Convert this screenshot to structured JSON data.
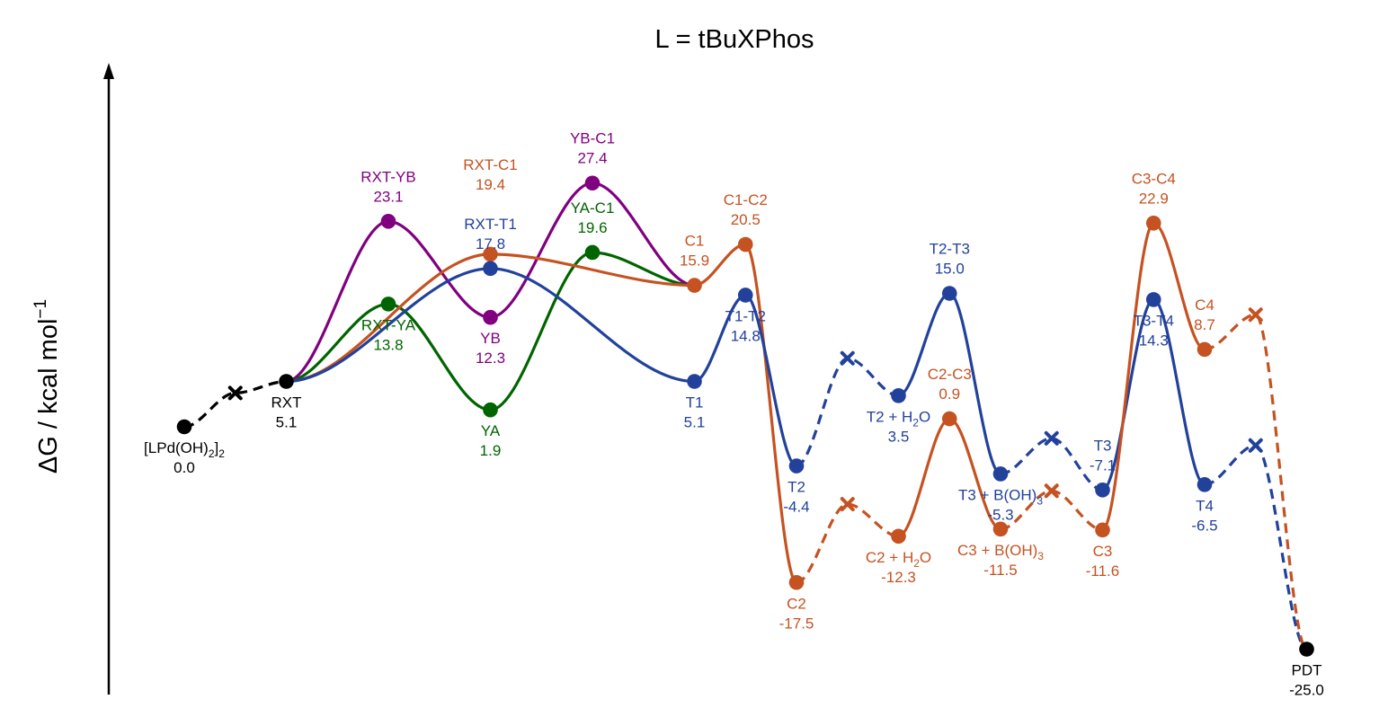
{
  "chart_data": {
    "type": "line",
    "title": "L = tBuXPhos",
    "ylabel": "ΔG / kcal mol",
    "ylabel_sup": "−1",
    "xlabel": "",
    "grid": false,
    "axis": {
      "y_arrow": true,
      "y_ticks": false
    },
    "colors": {
      "black": "#000000",
      "orange": "#c55221",
      "blue": "#22419b",
      "purple": "#800080",
      "green": "#006400"
    },
    "states": [
      {
        "id": "lpd",
        "name": "[LPd(OH)2]2",
        "value": 0.0,
        "color": "black",
        "x": 0.0,
        "y": 0.0
      },
      {
        "id": "rxt",
        "name": "RXT",
        "value": 5.1,
        "color": "black",
        "x": 1.0,
        "y": 5.1
      },
      {
        "id": "rxtyb",
        "name": "RXT-YB",
        "value": 23.1,
        "color": "purple",
        "x": 2.0,
        "y": 23.1
      },
      {
        "id": "rxtya",
        "name": "RXT-YA",
        "value": 13.8,
        "color": "green",
        "x": 2.0,
        "y": 13.8
      },
      {
        "id": "rxtc1",
        "name": "RXT-C1",
        "value": 19.4,
        "color": "orange",
        "x": 3.0,
        "y": 19.4
      },
      {
        "id": "rxtt1",
        "name": "RXT-T1",
        "value": 17.8,
        "color": "blue",
        "x": 3.0,
        "y": 17.8
      },
      {
        "id": "yb",
        "name": "YB",
        "value": 12.3,
        "color": "purple",
        "x": 3.0,
        "y": 12.3
      },
      {
        "id": "ya",
        "name": "YA",
        "value": 1.9,
        "color": "green",
        "x": 3.0,
        "y": 1.9
      },
      {
        "id": "ybc1",
        "name": "YB-C1",
        "value": 27.4,
        "color": "purple",
        "x": 4.0,
        "y": 27.4
      },
      {
        "id": "yac1",
        "name": "YA-C1",
        "value": 19.6,
        "color": "green",
        "x": 4.0,
        "y": 19.6
      },
      {
        "id": "c1",
        "name": "C1",
        "value": 15.9,
        "color": "orange",
        "x": 5.0,
        "y": 15.9
      },
      {
        "id": "t1",
        "name": "T1",
        "value": 5.1,
        "color": "blue",
        "x": 5.0,
        "y": 5.1
      },
      {
        "id": "c1c2",
        "name": "C1-C2",
        "value": 20.5,
        "color": "orange",
        "x": 5.5,
        "y": 20.5
      },
      {
        "id": "t1t2",
        "name": "T1-T2",
        "value": 14.8,
        "color": "blue",
        "x": 5.5,
        "y": 14.8
      },
      {
        "id": "t2",
        "name": "T2",
        "value": -4.4,
        "color": "blue",
        "x": 6.0,
        "y": -4.4
      },
      {
        "id": "c2",
        "name": "C2",
        "value": -17.5,
        "color": "orange",
        "x": 6.0,
        "y": -17.5
      },
      {
        "id": "t2h",
        "name": "T2 + H2O",
        "value": 3.5,
        "color": "blue",
        "x": 7.0,
        "y": 3.5
      },
      {
        "id": "c2h",
        "name": "C2 + H2O",
        "value": -12.3,
        "color": "orange",
        "x": 7.0,
        "y": -12.3
      },
      {
        "id": "t2t3",
        "name": "T2-T3",
        "value": 15.0,
        "color": "blue",
        "x": 7.5,
        "y": 15.0
      },
      {
        "id": "c2c3",
        "name": "C2-C3",
        "value": 0.9,
        "color": "orange",
        "x": 7.5,
        "y": 0.9
      },
      {
        "id": "t3b",
        "name": "T3 + B(OH)3",
        "value": -5.3,
        "color": "blue",
        "x": 8.0,
        "y": -5.3
      },
      {
        "id": "c3b",
        "name": "C3 + B(OH)3",
        "value": -11.5,
        "color": "orange",
        "x": 8.0,
        "y": -11.5
      },
      {
        "id": "t3",
        "name": "T3",
        "value": -7.1,
        "color": "blue",
        "x": 9.0,
        "y": -7.1
      },
      {
        "id": "c3",
        "name": "C3",
        "value": -11.6,
        "color": "orange",
        "x": 9.0,
        "y": -11.6
      },
      {
        "id": "c3c4",
        "name": "C3-C4",
        "value": 22.9,
        "color": "orange",
        "x": 9.5,
        "y": 22.9
      },
      {
        "id": "t3t4",
        "name": "T3-T4",
        "value": 14.3,
        "color": "blue",
        "x": 9.5,
        "y": 14.3
      },
      {
        "id": "c4",
        "name": "C4",
        "value": 8.7,
        "color": "orange",
        "x": 10.0,
        "y": 8.7
      },
      {
        "id": "t4",
        "name": "T4",
        "value": -6.5,
        "color": "blue",
        "x": 10.0,
        "y": -6.5
      },
      {
        "id": "pdt",
        "name": "PDT",
        "value": -25.0,
        "color": "black",
        "x": 11.0,
        "y": -25.0
      }
    ],
    "crossings": [
      {
        "id": "x1",
        "color": "black",
        "x": 0.5,
        "y": 3.8
      },
      {
        "id": "x2",
        "color": "blue",
        "x": 6.5,
        "y": 7.7
      },
      {
        "id": "x3",
        "color": "orange",
        "x": 6.5,
        "y": -8.7
      },
      {
        "id": "x4",
        "color": "blue",
        "x": 8.5,
        "y": -1.3
      },
      {
        "id": "x5",
        "color": "orange",
        "x": 8.5,
        "y": -7.2
      },
      {
        "id": "x6",
        "color": "orange",
        "x": 10.5,
        "y": 12.6
      },
      {
        "id": "x7",
        "color": "blue",
        "x": 10.5,
        "y": -2.1
      }
    ],
    "paths": [
      {
        "id": "lpd-rxt",
        "color": "black",
        "style": "dashed",
        "points": [
          "lpd",
          "x1",
          "rxt"
        ]
      },
      {
        "id": "purple",
        "color": "purple",
        "style": "solid",
        "points": [
          "rxt",
          "rxtyb",
          "yb",
          "ybc1",
          "c1"
        ]
      },
      {
        "id": "green",
        "color": "green",
        "style": "solid",
        "points": [
          "rxt",
          "rxtya",
          "ya",
          "yac1",
          "c1"
        ]
      },
      {
        "id": "orange-a",
        "color": "orange",
        "style": "solid",
        "points": [
          "rxt",
          "rxtc1",
          "c1",
          "c1c2",
          "c2"
        ]
      },
      {
        "id": "blue-a",
        "color": "blue",
        "style": "solid",
        "points": [
          "rxt",
          "rxtt1",
          "t1",
          "t1t2",
          "t2"
        ]
      },
      {
        "id": "blue-d1",
        "color": "blue",
        "style": "dashed",
        "points": [
          "t2",
          "x2",
          "t2h"
        ]
      },
      {
        "id": "blue-b",
        "color": "blue",
        "style": "solid",
        "points": [
          "t2h",
          "t2t3",
          "t3b"
        ]
      },
      {
        "id": "blue-d2",
        "color": "blue",
        "style": "dashed",
        "points": [
          "t3b",
          "x4",
          "t3"
        ]
      },
      {
        "id": "blue-c",
        "color": "blue",
        "style": "solid",
        "points": [
          "t3",
          "t3t4",
          "t4"
        ]
      },
      {
        "id": "blue-d3",
        "color": "blue",
        "style": "dashed",
        "points": [
          "t4",
          "x7",
          "pdt"
        ]
      },
      {
        "id": "orange-d1",
        "color": "orange",
        "style": "dashed",
        "points": [
          "c2",
          "x3",
          "c2h"
        ]
      },
      {
        "id": "orange-b",
        "color": "orange",
        "style": "solid",
        "points": [
          "c2h",
          "c2c3",
          "c3b"
        ]
      },
      {
        "id": "orange-d2",
        "color": "orange",
        "style": "dashed",
        "points": [
          "c3b",
          "x5",
          "c3"
        ]
      },
      {
        "id": "orange-c",
        "color": "orange",
        "style": "solid",
        "points": [
          "c3",
          "c3c4",
          "c4"
        ]
      },
      {
        "id": "orange-d3",
        "color": "orange",
        "style": "dashed",
        "points": [
          "c4",
          "x6",
          "pdt"
        ]
      }
    ],
    "labels": [
      {
        "state": "lpd",
        "color": "black",
        "pos": "below",
        "lines": [
          [
            "[LPd(OH)",
            {
              "sub": "2"
            },
            "]",
            {
              "sub": "2"
            }
          ],
          [
            "0.0"
          ]
        ]
      },
      {
        "state": "rxt",
        "color": "black",
        "pos": "below",
        "lines": [
          [
            "RXT"
          ],
          [
            "5.1"
          ]
        ]
      },
      {
        "state": "rxtyb",
        "color": "purple",
        "pos": "above",
        "lines": [
          [
            "RXT-YB"
          ],
          [
            "23.1"
          ]
        ]
      },
      {
        "state": "rxtya",
        "color": "green",
        "pos": "below",
        "lines": [
          [
            "RXT-YA"
          ],
          [
            "13.8"
          ]
        ]
      },
      {
        "state": "rxtc1",
        "color": "orange",
        "pos": "above",
        "lift": 50,
        "lines": [
          [
            "RXT-C1"
          ],
          [
            "19.4"
          ]
        ]
      },
      {
        "state": "rxtt1",
        "color": "blue",
        "pos": "above",
        "lines": [
          [
            "RXT-T1"
          ],
          [
            "17.8"
          ]
        ]
      },
      {
        "state": "yb",
        "color": "purple",
        "pos": "below",
        "lines": [
          [
            "YB"
          ],
          [
            "12.3"
          ]
        ]
      },
      {
        "state": "ya",
        "color": "green",
        "pos": "below",
        "lines": [
          [
            "YA"
          ],
          [
            "1.9"
          ]
        ]
      },
      {
        "state": "ybc1",
        "color": "purple",
        "pos": "above",
        "lines": [
          [
            "YB-C1"
          ],
          [
            "27.4"
          ]
        ]
      },
      {
        "state": "yac1",
        "color": "green",
        "pos": "above",
        "lines": [
          [
            "YA-C1"
          ],
          [
            "19.6"
          ]
        ]
      },
      {
        "state": "c1",
        "color": "orange",
        "pos": "above",
        "lines": [
          [
            "C1"
          ],
          [
            "15.9"
          ]
        ]
      },
      {
        "state": "t1",
        "color": "blue",
        "pos": "below",
        "lines": [
          [
            "T1"
          ],
          [
            "5.1"
          ]
        ]
      },
      {
        "state": "c1c2",
        "color": "orange",
        "pos": "above",
        "lines": [
          [
            "C1-C2"
          ],
          [
            "20.5"
          ]
        ]
      },
      {
        "state": "t1t2",
        "color": "blue",
        "pos": "below",
        "lines": [
          [
            "T1-T2"
          ],
          [
            "14.8"
          ]
        ]
      },
      {
        "state": "t2",
        "color": "blue",
        "pos": "below",
        "lines": [
          [
            "T2"
          ],
          [
            "-4.4"
          ]
        ]
      },
      {
        "state": "c2",
        "color": "orange",
        "pos": "below",
        "lines": [
          [
            "C2"
          ],
          [
            "-17.5"
          ]
        ]
      },
      {
        "state": "t2h",
        "color": "blue",
        "pos": "below",
        "lines": [
          [
            "T2 + H",
            {
              "sub": "2"
            },
            "O"
          ],
          [
            "3.5"
          ]
        ]
      },
      {
        "state": "c2h",
        "color": "orange",
        "pos": "below",
        "lines": [
          [
            "C2 + H",
            {
              "sub": "2"
            },
            "O"
          ],
          [
            "-12.3"
          ]
        ]
      },
      {
        "state": "t2t3",
        "color": "blue",
        "pos": "above",
        "lines": [
          [
            "T2-T3"
          ],
          [
            "15.0"
          ]
        ]
      },
      {
        "state": "c2c3",
        "color": "orange",
        "pos": "above",
        "lines": [
          [
            "C2-C3"
          ],
          [
            "0.9"
          ]
        ]
      },
      {
        "state": "t3b",
        "color": "blue",
        "pos": "below",
        "lines": [
          [
            "T3 + B(OH)",
            {
              "sub": "3"
            }
          ],
          [
            "-5.3"
          ]
        ]
      },
      {
        "state": "c3b",
        "color": "orange",
        "pos": "below",
        "lines": [
          [
            "C3 + B(OH)",
            {
              "sub": "3"
            }
          ],
          [
            "-11.5"
          ]
        ]
      },
      {
        "state": "t3",
        "color": "blue",
        "pos": "above",
        "lines": [
          [
            "T3"
          ],
          [
            "-7.1"
          ]
        ]
      },
      {
        "state": "c3",
        "color": "orange",
        "pos": "below",
        "lines": [
          [
            "C3"
          ],
          [
            "-11.6"
          ]
        ]
      },
      {
        "state": "c3c4",
        "color": "orange",
        "pos": "above",
        "lines": [
          [
            "C3-C4"
          ],
          [
            "22.9"
          ]
        ]
      },
      {
        "state": "t3t4",
        "color": "blue",
        "pos": "below",
        "lines": [
          [
            "T3-T4"
          ],
          [
            "14.3"
          ]
        ]
      },
      {
        "state": "c4",
        "color": "orange",
        "pos": "above",
        "lines": [
          [
            "C4"
          ],
          [
            "8.7"
          ]
        ]
      },
      {
        "state": "t4",
        "color": "blue",
        "pos": "below",
        "lines": [
          [
            "T4"
          ],
          [
            "-6.5"
          ]
        ]
      },
      {
        "state": "pdt",
        "color": "black",
        "pos": "below",
        "lines": [
          [
            "PDT"
          ],
          [
            "-25.0"
          ]
        ]
      }
    ]
  }
}
